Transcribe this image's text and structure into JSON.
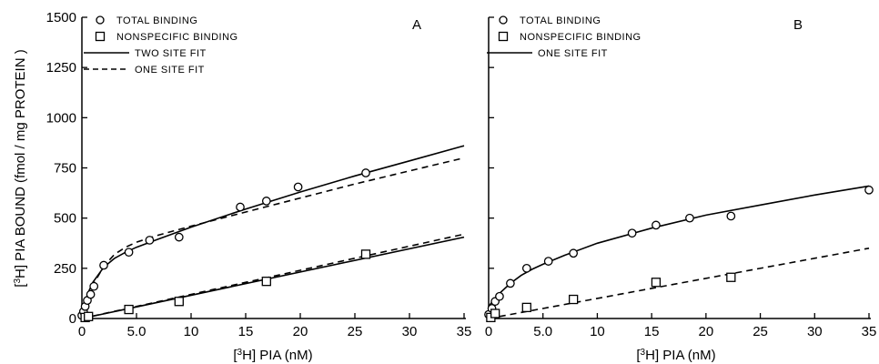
{
  "chart_data": [
    {
      "type": "scatter",
      "panel_label": "A",
      "x_unit": "nM",
      "xlim": [
        0,
        35
      ],
      "ylim": [
        0,
        1500
      ],
      "x_ticks": [
        {
          "value": 0,
          "label": "0"
        },
        {
          "value": 5,
          "label": "5.0"
        },
        {
          "value": 10,
          "label": "10"
        },
        {
          "value": 15,
          "label": "15"
        },
        {
          "value": 20,
          "label": "20"
        },
        {
          "value": 25,
          "label": "25"
        },
        {
          "value": 30,
          "label": "30"
        },
        {
          "value": 35,
          "label": "35"
        }
      ],
      "y_ticks": [
        {
          "value": 0,
          "label": "0"
        },
        {
          "value": 250,
          "label": "250"
        },
        {
          "value": 500,
          "label": "500"
        },
        {
          "value": 750,
          "label": "750"
        },
        {
          "value": 1000,
          "label": "1000"
        },
        {
          "value": 1250,
          "label": "1250"
        },
        {
          "value": 1500,
          "label": "1500"
        }
      ],
      "legend_position": "top-left",
      "legend": [
        {
          "symbol": "circle",
          "label": "TOTAL BINDING"
        },
        {
          "symbol": "square",
          "label": "NONSPECIFIC BINDING"
        },
        {
          "symbol": "solid-line",
          "label": "TWO SITE FIT"
        },
        {
          "symbol": "dashed-line",
          "label": "ONE SITE FIT"
        }
      ],
      "series": [
        {
          "name": "TOTAL BINDING",
          "marker": "circle",
          "x": [
            0,
            0.15,
            0.3,
            0.5,
            0.8,
            1.1,
            2.0,
            4.3,
            6.2,
            8.9,
            14.5,
            16.9,
            19.8,
            26.0
          ],
          "y": [
            15,
            35,
            60,
            90,
            120,
            160,
            265,
            330,
            390,
            405,
            555,
            585,
            655,
            725
          ]
        },
        {
          "name": "NONSPECIFIC BINDING",
          "marker": "square",
          "x": [
            0.3,
            0.6,
            4.3,
            8.9,
            16.9,
            26.0
          ],
          "y": [
            5,
            10,
            45,
            85,
            185,
            320
          ]
        }
      ],
      "fits": [
        {
          "name": "TWO SITE FIT",
          "of": "TOTAL BINDING",
          "style": "solid",
          "x": [
            0,
            0.5,
            1,
            2,
            3,
            4,
            5,
            7,
            10,
            15,
            20,
            25,
            30,
            35
          ],
          "y": [
            0,
            120,
            180,
            255,
            300,
            330,
            355,
            395,
            455,
            545,
            630,
            710,
            785,
            860
          ]
        },
        {
          "name": "ONE SITE FIT",
          "of": "TOTAL BINDING",
          "style": "dashed",
          "x": [
            0,
            0.5,
            1,
            2,
            3,
            4,
            5,
            7,
            10,
            15,
            20,
            25,
            30,
            35
          ],
          "y": [
            0,
            100,
            165,
            260,
            320,
            355,
            380,
            415,
            460,
            530,
            600,
            670,
            735,
            800
          ]
        },
        {
          "name": "TWO SITE FIT",
          "of": "NONSPECIFIC BINDING",
          "style": "solid",
          "x": [
            0,
            35
          ],
          "y": [
            0,
            405
          ]
        },
        {
          "name": "ONE SITE FIT",
          "of": "NONSPECIFIC BINDING",
          "style": "dashed",
          "x": [
            0,
            35
          ],
          "y": [
            0,
            420
          ]
        }
      ]
    },
    {
      "type": "scatter",
      "panel_label": "B",
      "x_unit": "nM",
      "xlim": [
        0,
        35
      ],
      "ylim": [
        0,
        1500
      ],
      "x_ticks": [
        {
          "value": 0,
          "label": "0"
        },
        {
          "value": 5,
          "label": "5.0"
        },
        {
          "value": 10,
          "label": "10"
        },
        {
          "value": 15,
          "label": "15"
        },
        {
          "value": 20,
          "label": "20"
        },
        {
          "value": 25,
          "label": "25"
        },
        {
          "value": 30,
          "label": "30"
        },
        {
          "value": 35,
          "label": "35"
        }
      ],
      "y_ticks": [
        {
          "value": 0,
          "label": ""
        },
        {
          "value": 250,
          "label": ""
        },
        {
          "value": 500,
          "label": ""
        },
        {
          "value": 750,
          "label": ""
        },
        {
          "value": 1000,
          "label": ""
        },
        {
          "value": 1250,
          "label": ""
        },
        {
          "value": 1500,
          "label": ""
        }
      ],
      "legend_position": "top-left",
      "legend": [
        {
          "symbol": "circle",
          "label": "TOTAL BINDING"
        },
        {
          "symbol": "square",
          "label": "NONSPECIFIC BINDING"
        },
        {
          "symbol": "solid-line",
          "label": "ONE SITE FIT"
        }
      ],
      "series": [
        {
          "name": "TOTAL BINDING",
          "marker": "circle",
          "x": [
            0,
            0.3,
            0.6,
            1.0,
            2.0,
            3.5,
            5.5,
            7.8,
            13.2,
            15.4,
            18.5,
            22.3,
            35.0
          ],
          "y": [
            20,
            50,
            85,
            110,
            175,
            250,
            285,
            325,
            425,
            465,
            500,
            510,
            640
          ]
        },
        {
          "name": "NONSPECIFIC BINDING",
          "marker": "square",
          "x": [
            0.2,
            0.6,
            3.5,
            7.8,
            15.4,
            22.3
          ],
          "y": [
            5,
            25,
            55,
            95,
            180,
            205
          ]
        }
      ],
      "fits": [
        {
          "name": "ONE SITE FIT",
          "of": "TOTAL BINDING",
          "style": "solid",
          "x": [
            0,
            0.5,
            1,
            2,
            3,
            4,
            5,
            7,
            10,
            15,
            20,
            25,
            30,
            35
          ],
          "y": [
            60,
            95,
            125,
            175,
            215,
            245,
            270,
            315,
            375,
            450,
            515,
            565,
            615,
            660
          ]
        },
        {
          "name": "",
          "of": "NONSPECIFIC BINDING",
          "style": "dashed",
          "x": [
            0,
            35
          ],
          "y": [
            0,
            350
          ]
        }
      ]
    }
  ],
  "axes": {
    "y_title_prefix": "[",
    "y_title_sup": "3",
    "y_title_rest": "H] PIA BOUND (fmol / mg  PROTEIN )",
    "x_title_prefix": "[",
    "x_title_sup": "3",
    "x_title_rest": "H]  PIA (nM)"
  }
}
